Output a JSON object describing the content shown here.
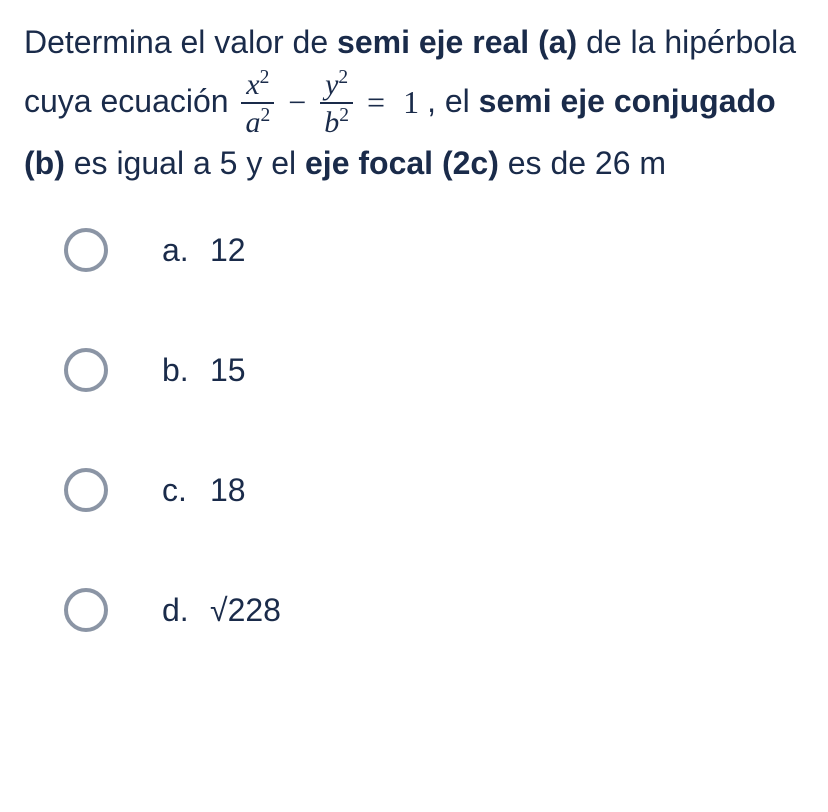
{
  "question": {
    "t1": "Determina el valor de ",
    "bold1": "semi eje real (a)",
    "t2": " de la hipérbola cuya ecuación ",
    "eq": {
      "num1_base": "x",
      "num1_exp": "2",
      "den1_base": "a",
      "den1_exp": "2",
      "minus": "−",
      "num2_base": "y",
      "num2_exp": "2",
      "den2_base": "b",
      "den2_exp": "2",
      "equals": "=",
      "one": "1"
    },
    "t3": ", el ",
    "bold2": "semi eje conjugado (b)",
    "t4": " es igual a 5 y el ",
    "bold3": "eje focal (2c)",
    "t5": " es de 26 m"
  },
  "options": [
    {
      "letter": "a.",
      "value": "12"
    },
    {
      "letter": "b.",
      "value": "15"
    },
    {
      "letter": "c.",
      "value": "18"
    },
    {
      "letter": "d.",
      "value": "√228"
    }
  ],
  "colors": {
    "text": "#1a2b4a",
    "radio_border": "#8b95a5",
    "bg": "#ffffff"
  },
  "font_sizes_pt": {
    "question": 24,
    "options": 24
  }
}
